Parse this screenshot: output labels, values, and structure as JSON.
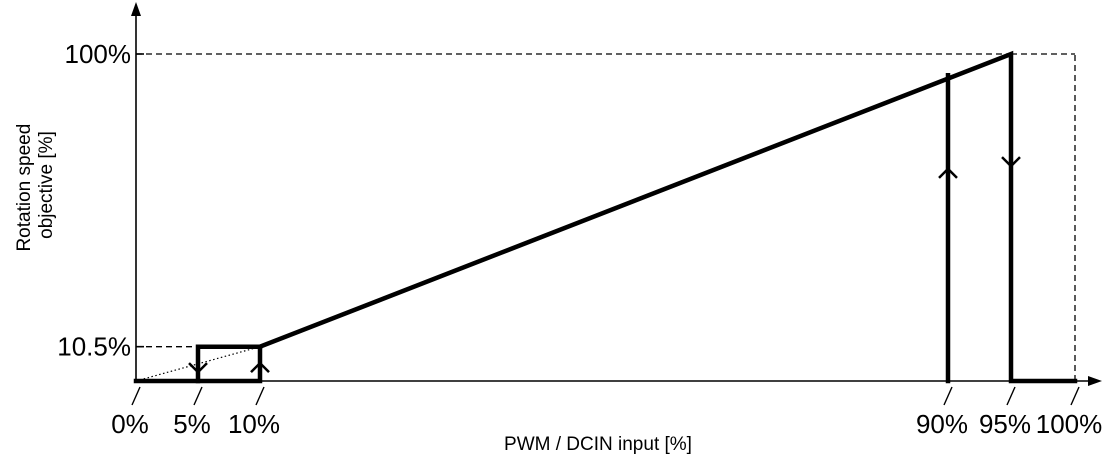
{
  "chart_data": {
    "type": "line",
    "title": "",
    "xlabel": "PWM / DCIN input [%]",
    "ylabel_lines": [
      "Rotation speed",
      "objective [%]"
    ],
    "x_ticks": [
      {
        "value": 0,
        "label": "0%"
      },
      {
        "value": 5,
        "label": "5%"
      },
      {
        "value": 10,
        "label": "10%"
      },
      {
        "value": 90,
        "label": "90%"
      },
      {
        "value": 95,
        "label": "95%"
      },
      {
        "value": 100,
        "label": "100%"
      }
    ],
    "y_ticks": [
      {
        "value": 10.5,
        "label": "10.5%"
      },
      {
        "value": 100,
        "label": "100%"
      }
    ],
    "xlim": [
      0,
      100
    ],
    "ylim": [
      0,
      100
    ],
    "axis_breaks_x": [
      0,
      5,
      10,
      90,
      95,
      100
    ],
    "series": [
      {
        "points": [
          [
            0,
            0
          ],
          [
            10,
            0
          ],
          [
            10,
            10.5
          ],
          [
            95,
            100
          ],
          [
            95,
            0
          ],
          [
            100,
            0
          ]
        ],
        "style": "solid-thick"
      },
      {
        "points": [
          [
            5,
            0
          ],
          [
            5,
            10.5
          ],
          [
            10,
            10.5
          ]
        ],
        "style": "solid-thick"
      },
      {
        "points": [
          [
            90,
            0
          ],
          [
            90,
            93.5
          ]
        ],
        "style": "solid-thick"
      },
      {
        "points": [
          [
            0,
            0
          ],
          [
            10,
            10.5
          ]
        ],
        "style": "dotted-thin"
      }
    ],
    "reference_lines": [
      {
        "points": [
          [
            0,
            10.5
          ],
          [
            10,
            10.5
          ]
        ],
        "style": "dashed"
      },
      {
        "points": [
          [
            0,
            100
          ],
          [
            95,
            100
          ]
        ],
        "style": "dashed"
      },
      {
        "points": [
          [
            95,
            100
          ],
          [
            100,
            100
          ]
        ],
        "style": "dashed"
      },
      {
        "points": [
          [
            100,
            0
          ],
          [
            100,
            100
          ]
        ],
        "style": "dashed"
      }
    ],
    "direction_arrows": [
      {
        "x": 5,
        "y": 4.1,
        "direction": "down"
      },
      {
        "x": 10,
        "y": 4.1,
        "direction": "up"
      },
      {
        "x": 90,
        "y": 63.5,
        "direction": "up"
      },
      {
        "x": 95,
        "y": 67.1,
        "direction": "down"
      }
    ],
    "grid": false,
    "legend": "none"
  }
}
